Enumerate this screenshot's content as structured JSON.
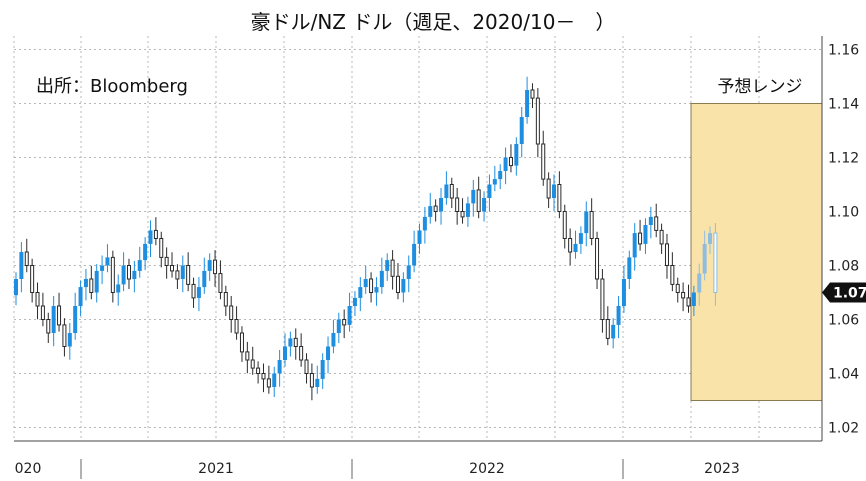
{
  "chart_data": {
    "type": "candlestick",
    "title": "豪ドル/NZ ドル（週足、2020/10－　）",
    "source": "出所：Bloomberg",
    "range_label": "予想レンジ",
    "forecast_range": [
      1.03,
      1.14
    ],
    "ylim": [
      1.015,
      1.165
    ],
    "yticks": [
      1.02,
      1.04,
      1.06,
      1.08,
      1.1,
      1.12,
      1.14,
      1.16
    ],
    "ytick_labels": [
      "1.02",
      "1.04",
      "1.06",
      "1.08",
      "1.10",
      "1.12",
      "1.14",
      "1.16"
    ],
    "year_labels": [
      "020",
      "2021",
      "2022",
      "2023"
    ],
    "last_value": 1.07,
    "last_value_label": "1.07",
    "grid": true,
    "colors": {
      "up": "#1e8ee0",
      "down": "#2a2a2a",
      "recent": "#8fbde0",
      "forecast_fill": "#fae3a8",
      "forecast_stroke": "#8a7a50",
      "grid": "#b8b8b8",
      "tag": "#111111"
    },
    "close": [
      1.075,
      1.085,
      1.08,
      1.07,
      1.065,
      1.06,
      1.055,
      1.065,
      1.058,
      1.05,
      1.055,
      1.065,
      1.072,
      1.075,
      1.07,
      1.078,
      1.08,
      1.083,
      1.07,
      1.073,
      1.08,
      1.075,
      1.078,
      1.082,
      1.088,
      1.093,
      1.09,
      1.083,
      1.08,
      1.078,
      1.075,
      1.08,
      1.073,
      1.068,
      1.072,
      1.078,
      1.082,
      1.077,
      1.07,
      1.065,
      1.06,
      1.055,
      1.048,
      1.045,
      1.042,
      1.04,
      1.038,
      1.035,
      1.04,
      1.045,
      1.05,
      1.053,
      1.05,
      1.045,
      1.04,
      1.035,
      1.038,
      1.045,
      1.05,
      1.055,
      1.06,
      1.058,
      1.065,
      1.068,
      1.072,
      1.075,
      1.07,
      1.072,
      1.078,
      1.082,
      1.076,
      1.07,
      1.075,
      1.08,
      1.088,
      1.093,
      1.098,
      1.102,
      1.1,
      1.105,
      1.11,
      1.105,
      1.1,
      1.098,
      1.103,
      1.108,
      1.1,
      1.105,
      1.11,
      1.112,
      1.115,
      1.12,
      1.117,
      1.125,
      1.135,
      1.145,
      1.142,
      1.125,
      1.112,
      1.105,
      1.11,
      1.1,
      1.09,
      1.085,
      1.088,
      1.092,
      1.1,
      1.09,
      1.075,
      1.06,
      1.053,
      1.058,
      1.065,
      1.075,
      1.083,
      1.092,
      1.088,
      1.095,
      1.098,
      1.093,
      1.088,
      1.08,
      1.073,
      1.07,
      1.068,
      1.065,
      1.07,
      1.077,
      1.088,
      1.092,
      1.07
    ],
    "forecast_candle_count": 4
  }
}
